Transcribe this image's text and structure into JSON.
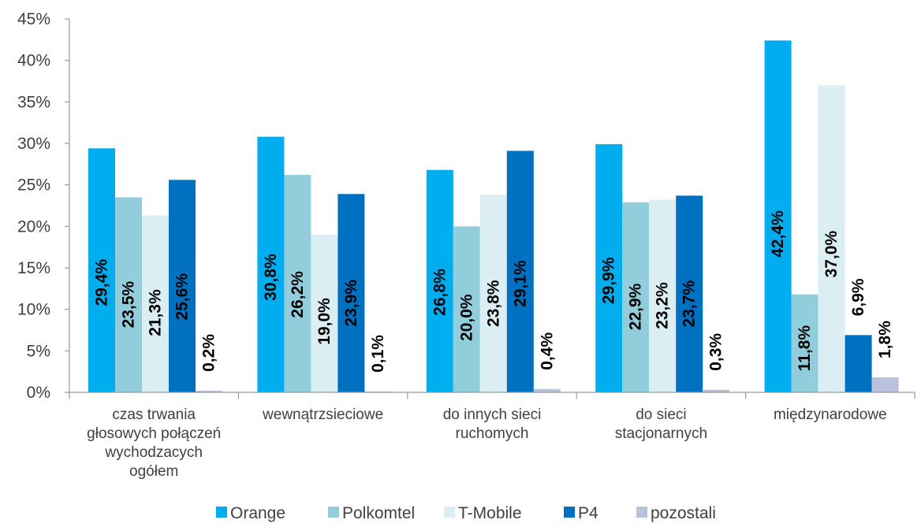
{
  "chart_data": {
    "type": "bar",
    "categories": [
      "czas trwania głosowych połączeń wychodzacych ogółem",
      "wewnątrzsieciowe",
      "do innych sieci ruchomych",
      "do sieci stacjonarnych",
      "międzynarodowe"
    ],
    "category_lines": [
      [
        "czas trwania",
        "głosowych połączeń",
        "wychodzacych",
        "ogółem"
      ],
      [
        "wewnątrzsieciowe"
      ],
      [
        "do innych sieci",
        "ruchomych"
      ],
      [
        "do sieci",
        "stacjonarnych"
      ],
      [
        "międzynarodowe"
      ]
    ],
    "series": [
      {
        "name": "Orange",
        "color": "#00adef",
        "values": [
          29.4,
          30.8,
          26.8,
          29.9,
          42.4
        ],
        "labels": [
          "29,4%",
          "30,8%",
          "26,8%",
          "29,9%",
          "42,4%"
        ]
      },
      {
        "name": "Polkomtel",
        "color": "#92cddc",
        "values": [
          23.5,
          26.2,
          20.0,
          22.9,
          11.8
        ],
        "labels": [
          "23,5%",
          "26,2%",
          "20,0%",
          "22,9%",
          "11,8%"
        ]
      },
      {
        "name": "T-Mobile",
        "color": "#daeef3",
        "values": [
          21.3,
          19.0,
          23.8,
          23.2,
          37.0
        ],
        "labels": [
          "21,3%",
          "19,0%",
          "23,8%",
          "23,2%",
          "37,0%"
        ]
      },
      {
        "name": "P4",
        "color": "#0070c0",
        "values": [
          25.6,
          23.9,
          29.1,
          23.7,
          6.9
        ],
        "labels": [
          "25,6%",
          "23,9%",
          "29,1%",
          "23,7%",
          "6,9%"
        ]
      },
      {
        "name": "pozostali",
        "color": "#b8c2dc",
        "values": [
          0.2,
          0.1,
          0.4,
          0.3,
          1.8
        ],
        "labels": [
          "0,2%",
          "0,1%",
          "0,4%",
          "0,3%",
          "1,8%"
        ]
      }
    ],
    "ylim": [
      0,
      45
    ],
    "yticks": [
      0,
      5,
      10,
      15,
      20,
      25,
      30,
      35,
      40,
      45
    ],
    "ytick_labels": [
      "0%",
      "5%",
      "10%",
      "15%",
      "20%",
      "25%",
      "30%",
      "35%",
      "40%",
      "45%"
    ],
    "legend_position": "bottom",
    "grid": false,
    "title": "",
    "xlabel": "",
    "ylabel": ""
  }
}
